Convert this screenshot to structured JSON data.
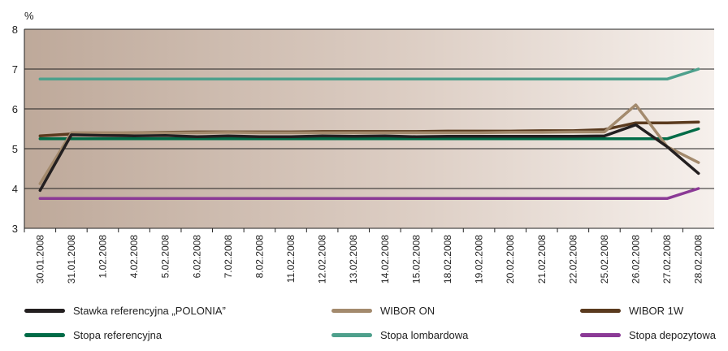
{
  "chart_data": {
    "type": "line",
    "ylabel": "%",
    "ylim": [
      3,
      8
    ],
    "yticks": [
      "3",
      "4",
      "5",
      "6",
      "7",
      "8"
    ],
    "grid": "horizontal",
    "legend_position": "bottom",
    "categories": [
      "30.01.2008",
      "31.01.2008",
      "1.02.2008",
      "4.02.2008",
      "5.02.2008",
      "6.02.2008",
      "7.02.2008",
      "8.02.2008",
      "11.02.2008",
      "12.02.2008",
      "13.02.2008",
      "14.02.2008",
      "15.02.2008",
      "18.02.2008",
      "19.02.2008",
      "20.02.2008",
      "21.02.2008",
      "22.02.2008",
      "25.02.2008",
      "26.02.2008",
      "27.02.2008",
      "28.02.2008"
    ],
    "series": [
      {
        "name": "Stawka referencyjna „POLONIA”",
        "color": "#231f20",
        "values": [
          3.95,
          5.35,
          5.33,
          5.32,
          5.33,
          5.3,
          5.32,
          5.3,
          5.3,
          5.32,
          5.31,
          5.32,
          5.3,
          5.31,
          5.31,
          5.31,
          5.31,
          5.31,
          5.32,
          5.6,
          5.05,
          4.38
        ]
      },
      {
        "name": "WIBOR ON",
        "color": "#a38a6d",
        "values": [
          4.12,
          5.4,
          5.4,
          5.4,
          5.4,
          5.4,
          5.41,
          5.4,
          5.4,
          5.4,
          5.4,
          5.4,
          5.4,
          5.4,
          5.4,
          5.41,
          5.41,
          5.42,
          5.42,
          6.1,
          5.05,
          4.65
        ]
      },
      {
        "name": "WIBOR 1W",
        "color": "#5a3a1e",
        "values": [
          5.32,
          5.37,
          5.38,
          5.4,
          5.41,
          5.42,
          5.42,
          5.42,
          5.42,
          5.43,
          5.43,
          5.43,
          5.43,
          5.44,
          5.44,
          5.44,
          5.45,
          5.45,
          5.48,
          5.65,
          5.65,
          5.67
        ]
      },
      {
        "name": "Stopa referencyjna",
        "color": "#006b47",
        "values": [
          5.25,
          5.25,
          5.25,
          5.25,
          5.25,
          5.25,
          5.25,
          5.25,
          5.25,
          5.25,
          5.25,
          5.25,
          5.25,
          5.25,
          5.25,
          5.25,
          5.25,
          5.25,
          5.25,
          5.25,
          5.25,
          5.5
        ]
      },
      {
        "name": "Stopa lombardowa",
        "color": "#4ea08c",
        "values": [
          6.75,
          6.75,
          6.75,
          6.75,
          6.75,
          6.75,
          6.75,
          6.75,
          6.75,
          6.75,
          6.75,
          6.75,
          6.75,
          6.75,
          6.75,
          6.75,
          6.75,
          6.75,
          6.75,
          6.75,
          6.75,
          7.0
        ]
      },
      {
        "name": "Stopa depozytowa",
        "color": "#8b3a96",
        "values": [
          3.75,
          3.75,
          3.75,
          3.75,
          3.75,
          3.75,
          3.75,
          3.75,
          3.75,
          3.75,
          3.75,
          3.75,
          3.75,
          3.75,
          3.75,
          3.75,
          3.75,
          3.75,
          3.75,
          3.75,
          3.75,
          4.0
        ]
      }
    ]
  }
}
